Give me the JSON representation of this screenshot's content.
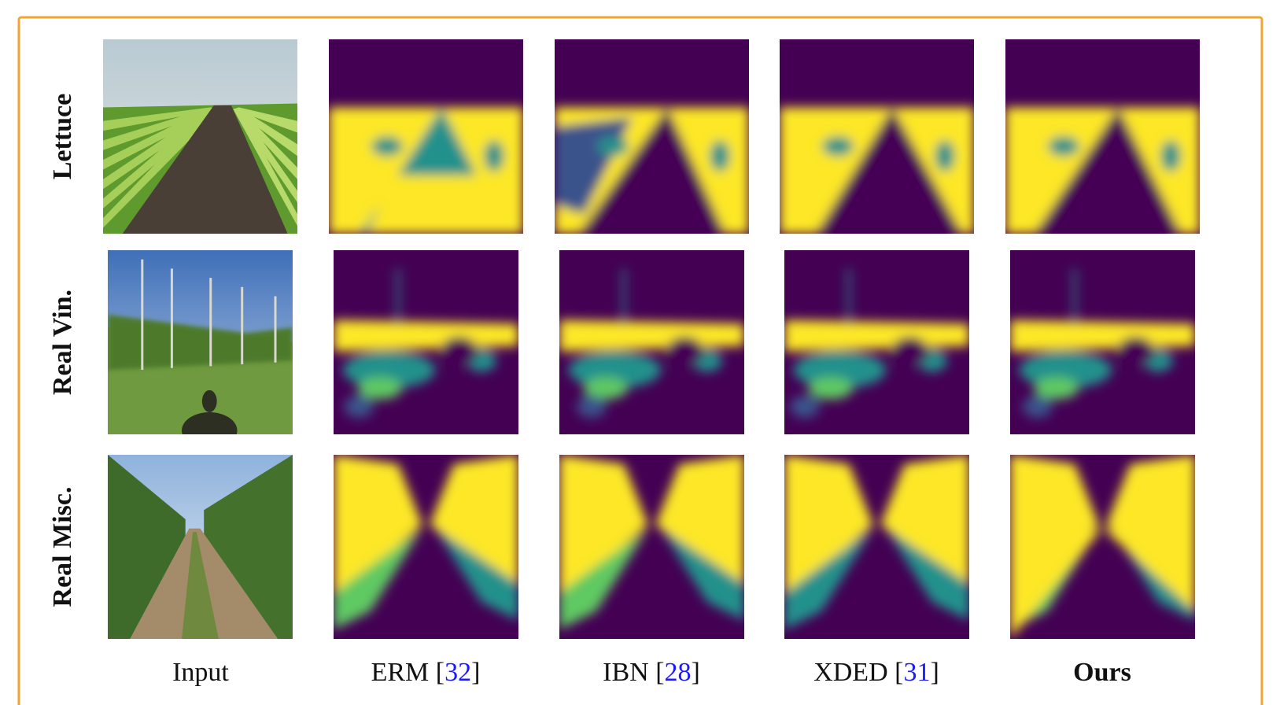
{
  "rows": [
    {
      "label": "Lettuce"
    },
    {
      "label": "Real Vin."
    },
    {
      "label": "Real Misc."
    }
  ],
  "columns": [
    {
      "parts": [
        "Input"
      ]
    },
    {
      "parts": [
        "ERM [",
        "32",
        "]"
      ]
    },
    {
      "parts": [
        "IBN [",
        "28",
        "]"
      ]
    },
    {
      "parts": [
        "XDED [",
        "31",
        "]"
      ]
    },
    {
      "parts": [
        "Ours"
      ],
      "bold": true
    }
  ],
  "ref_color": "#1a1aff",
  "border_color": "#f2a632"
}
